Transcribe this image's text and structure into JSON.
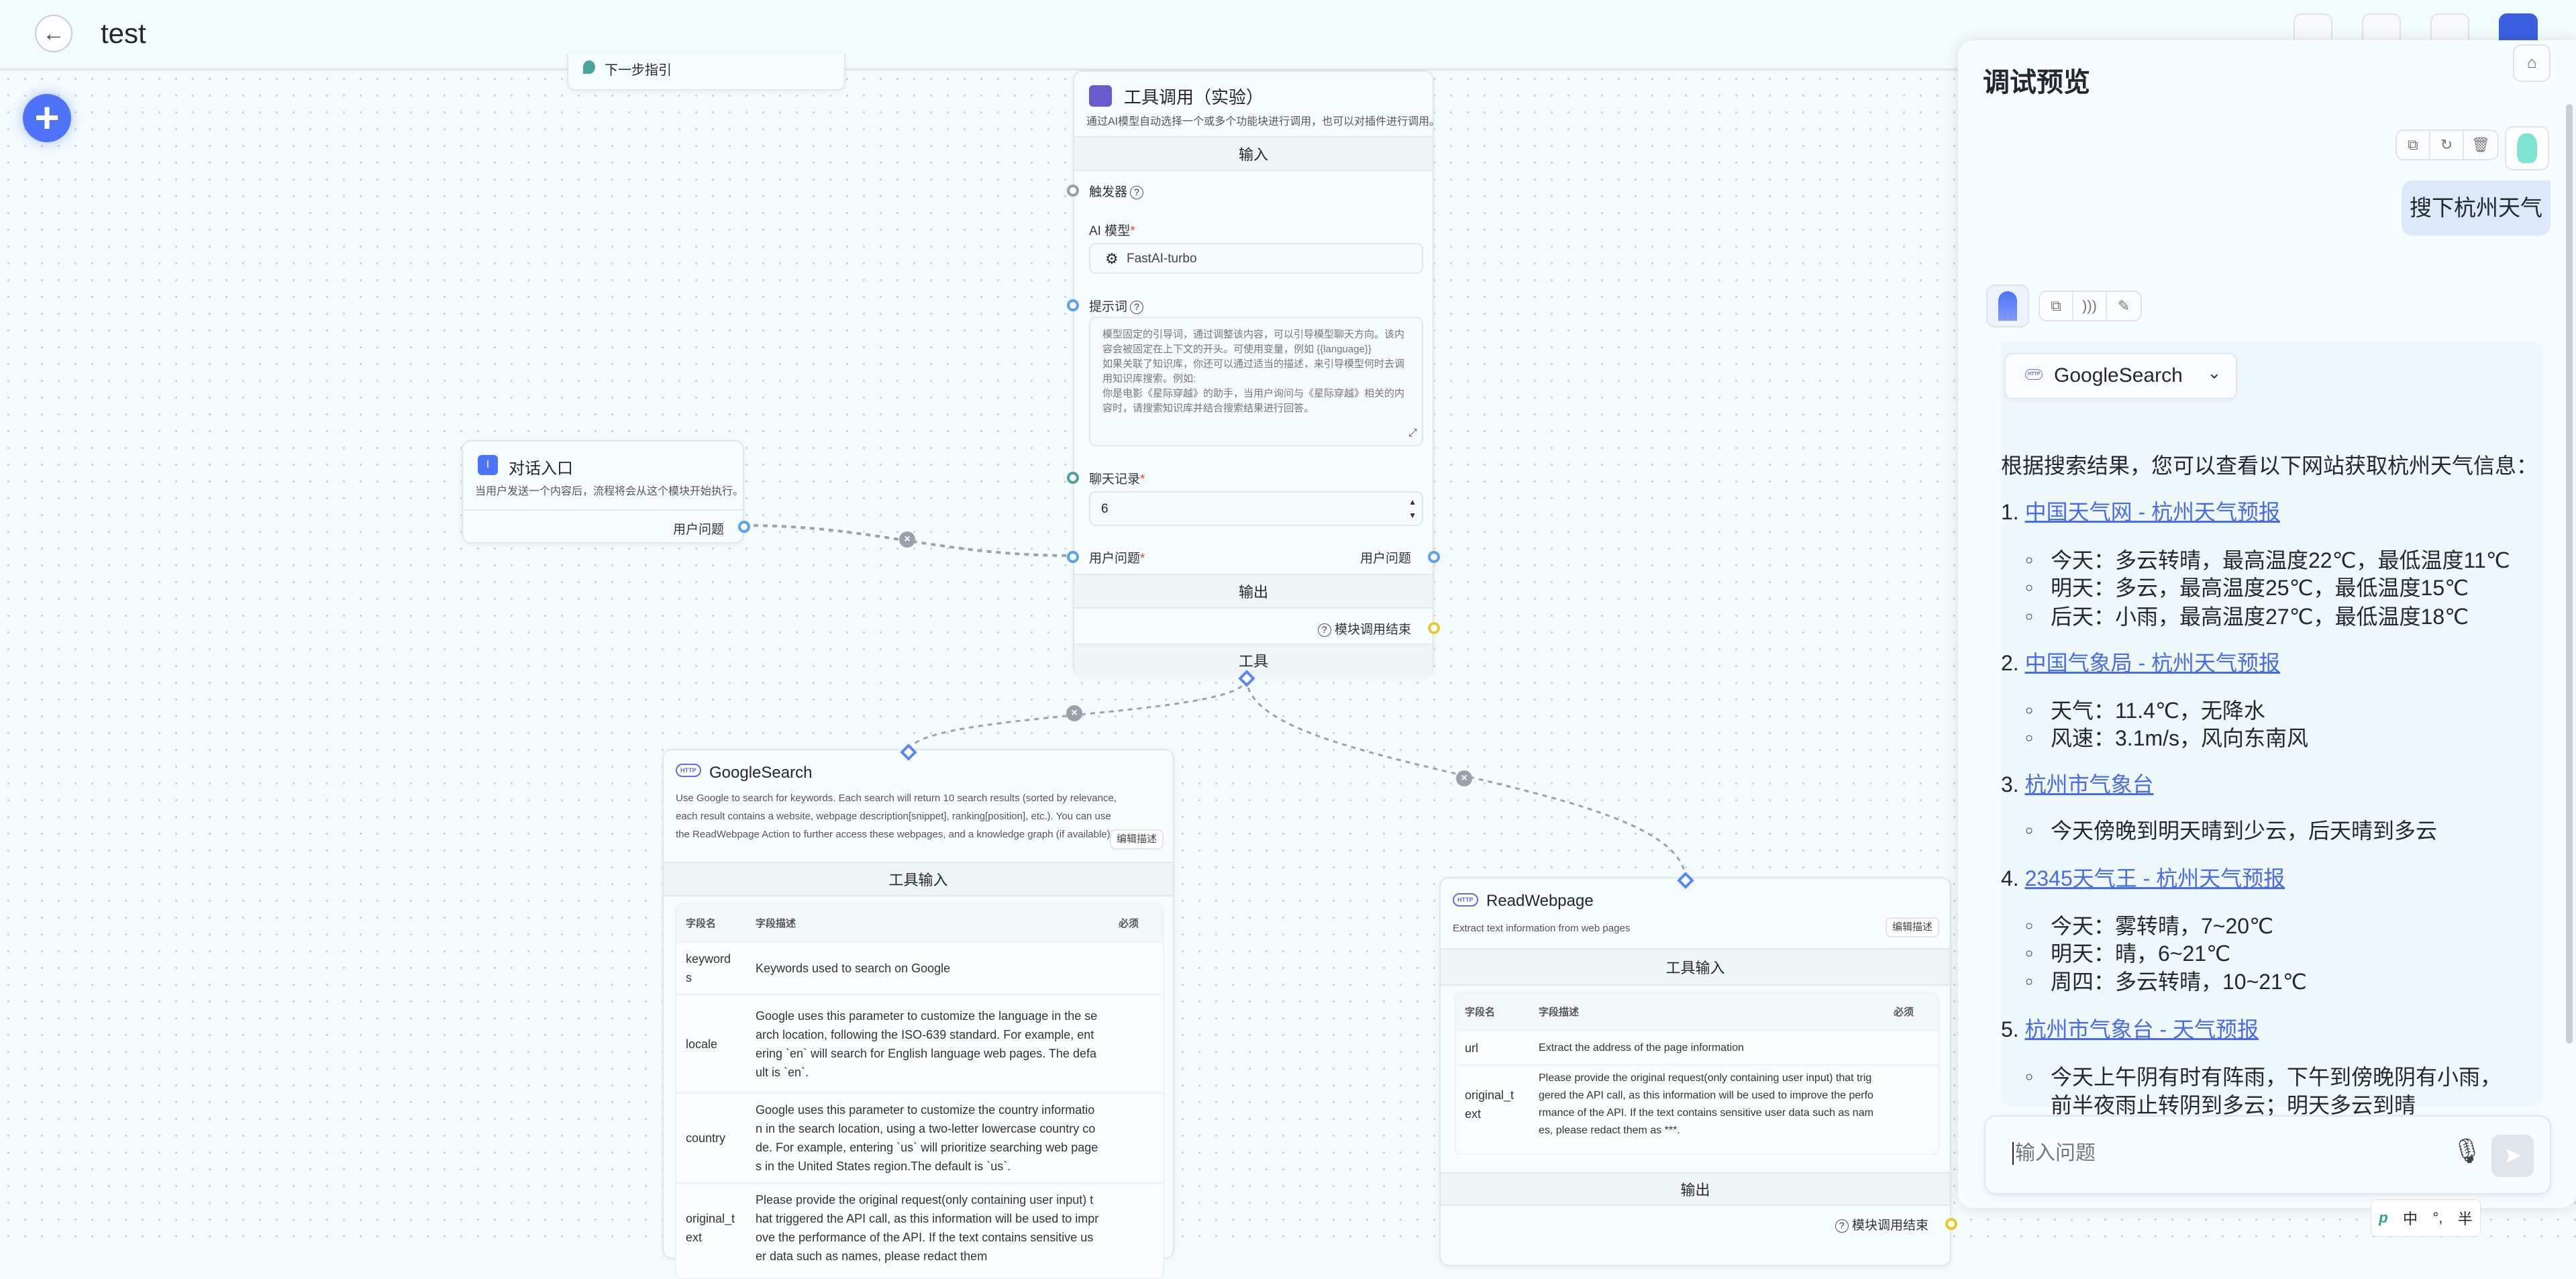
{
  "header": {
    "title": "test",
    "back_icon": "arrow-left-icon"
  },
  "canvas": {
    "guide_card": {
      "label": "下一步指引"
    },
    "tool_node": {
      "title": "工具调用（实验）",
      "description": "通过AI模型自动选择一个或多个功能块进行调用，也可以对插件进行调用。",
      "input_section": "输入",
      "trigger_label": "触发器",
      "model_label": "AI 模型",
      "model_value": "FastAI-turbo",
      "prompt_label": "提示词",
      "prompt_placeholder": "模型固定的引导词，通过调整该内容，可以引导模型聊天方向。该内容会被固定在上下文的开头。可使用变量，例如 {{language}}\n如果关联了知识库，你还可以通过适当的描述，来引导模型何时去调用知识库搜索。例如:\n你是电影《星际穿越》的助手，当用户询问与《星际穿越》相关的内容时，请搜索知识库并结合搜索结果进行回答。",
      "history_label": "聊天记录",
      "history_value": "6",
      "question_label": "用户问题",
      "question_output": "用户问题",
      "output_section": "输出",
      "finish_label": "模块调用结束",
      "tools_section": "工具"
    },
    "entry_node": {
      "title": "对话入口",
      "description": "当用户发送一个内容后，流程将会从这个模块开始执行。",
      "output_label": "用户问题"
    },
    "google_node": {
      "title": "GoogleSearch",
      "description": "Use Google to search for keywords. Each search will return 10 search results (sorted by relevance, each result contains a website, webpage description[snippet], ranking[position], etc.). You can use the ReadWebpage Action to further access these webpages, and a knowledge graph (if available).",
      "edit_button": "编辑描述",
      "section": "工具输入",
      "columns": [
        "字段名",
        "字段描述",
        "必须"
      ],
      "rows": [
        {
          "name": "keywords",
          "desc": "Keywords used to search on Google"
        },
        {
          "name": "locale",
          "desc": "Google uses this parameter to customize the language in the search location, following the ISO-639 standard. For example, entering `en` will search for English language web pages. The default is `en`."
        },
        {
          "name": "country",
          "desc": "Google uses this parameter to customize the country information in the search location, using a two-letter lowercase country code. For example, entering `us` will prioritize searching web pages in the United States region.The default is `us`."
        },
        {
          "name": "original_text",
          "desc": "Please provide the original request(only containing user input) that triggered the API call, as this information will be used to improve the performance of the API. If the text contains sensitive user data such as names, please redact them"
        }
      ]
    },
    "read_node": {
      "title": "ReadWebpage",
      "description": "Extract text information from web pages",
      "edit_button": "编辑描述",
      "section": "工具输入",
      "columns": [
        "字段名",
        "字段描述",
        "必须"
      ],
      "rows": [
        {
          "name": "url",
          "desc": "Extract the address of the page information"
        },
        {
          "name": "original_text",
          "desc": "Please provide the original request(only containing user input) that triggered the API call, as this information will be used to improve the performance of the API. If the text contains sensitive user data such as names, please redact them as ***."
        }
      ],
      "output_section": "输出",
      "finish_label": "模块调用结束"
    }
  },
  "panel": {
    "title": "调试预览",
    "clear_icon": "broom-icon",
    "user_message": "搜下杭州天气",
    "tool_chip": "GoogleSearch",
    "intro": "根据搜索结果，您可以查看以下网站获取杭州天气信息：",
    "results": [
      {
        "num": "1.",
        "link": "中国天气网 - 杭州天气预报",
        "items": [
          "今天：多云转晴，最高温度22℃，最低温度11℃",
          "明天：多云，最高温度25℃，最低温度15℃",
          "后天：小雨，最高温度27℃，最低温度18℃"
        ]
      },
      {
        "num": "2.",
        "link": "中国气象局 - 杭州天气预报",
        "items": [
          "天气：11.4℃，无降水",
          "风速：3.1m/s，风向东南风"
        ]
      },
      {
        "num": "3.",
        "link": "杭州市气象台",
        "items": [
          "今天傍晚到明天晴到少云，后天晴到多云"
        ]
      },
      {
        "num": "4.",
        "link": "2345天气王 - 杭州天气预报",
        "items": [
          "今天：雾转晴，7~20℃",
          "明天：晴，6~21℃",
          "周四：多云转晴，10~21℃"
        ]
      },
      {
        "num": "5.",
        "link": "杭州市气象台 - 天气预报",
        "items": [
          "今天上午阴有时有阵雨，下午到傍晚阴有小雨，前半夜雨止转阴到多云；明天多云到晴"
        ]
      }
    ],
    "input_placeholder": "输入问题"
  },
  "ime": {
    "mode": "中",
    "punct": "°,",
    "width": "半"
  },
  "colors": {
    "accent": "#4e73f8",
    "link": "#4a6ee0",
    "handle_blue": "#5aa1f0",
    "handle_yellow": "#e6c832",
    "handle_teal": "#4aa39a",
    "tool_purple": "#6a5acd"
  }
}
